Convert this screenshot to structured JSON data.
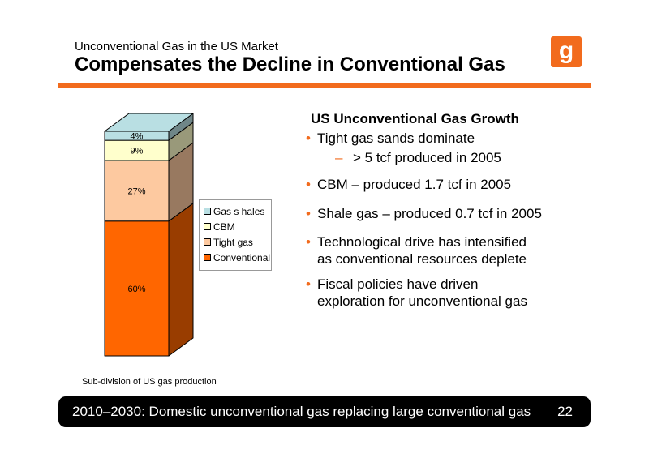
{
  "header": {
    "subtitle": "Unconventional Gas in the US Market",
    "title": "Compensates the Decline in Conventional Gas",
    "logo_letter": "g",
    "accent_color": "#f26b1d"
  },
  "chart_data": {
    "type": "bar",
    "stacked": true,
    "three_d": true,
    "categories": [
      ""
    ],
    "series": [
      {
        "name": "Conventional",
        "values": [
          60
        ],
        "label": "60%",
        "color": "#ff6600"
      },
      {
        "name": "Tight gas",
        "values": [
          27
        ],
        "label": "27%",
        "color": "#fdc9a0"
      },
      {
        "name": "CBM",
        "values": [
          9
        ],
        "label": "9%",
        "color": "#ffffcc"
      },
      {
        "name": "Gas shales",
        "values": [
          4
        ],
        "label": "4%",
        "color": "#b9dfe3"
      }
    ],
    "legend": [
      "Gas shales",
      "CBM",
      "Tight gas",
      "Conventional"
    ],
    "legend_display": [
      "Gas s hales",
      "CBM",
      "Tight gas",
      "Conventional"
    ],
    "legend_placement": "right",
    "ylim": [
      0,
      100
    ],
    "caption": "Sub-division of US gas production"
  },
  "panel": {
    "heading": "US Unconventional Gas Growth",
    "bullets": [
      {
        "lines": [
          "Tight gas sands dominate"
        ],
        "sub": "> 5 tcf produced in 2005"
      },
      {
        "lines": [
          "CBM – produced 1.7 tcf in 2005"
        ]
      },
      {
        "lines": [
          "Shale gas – produced 0.7 tcf in 2005"
        ]
      },
      {
        "lines": [
          "Technological drive has intensified",
          "as conventional resources deplete"
        ]
      },
      {
        "lines": [
          "Fiscal policies have driven",
          "exploration for unconventional gas"
        ]
      }
    ]
  },
  "footer": {
    "text": "2010–2030: Domestic unconventional gas replacing large conventional gas",
    "page": "22"
  }
}
